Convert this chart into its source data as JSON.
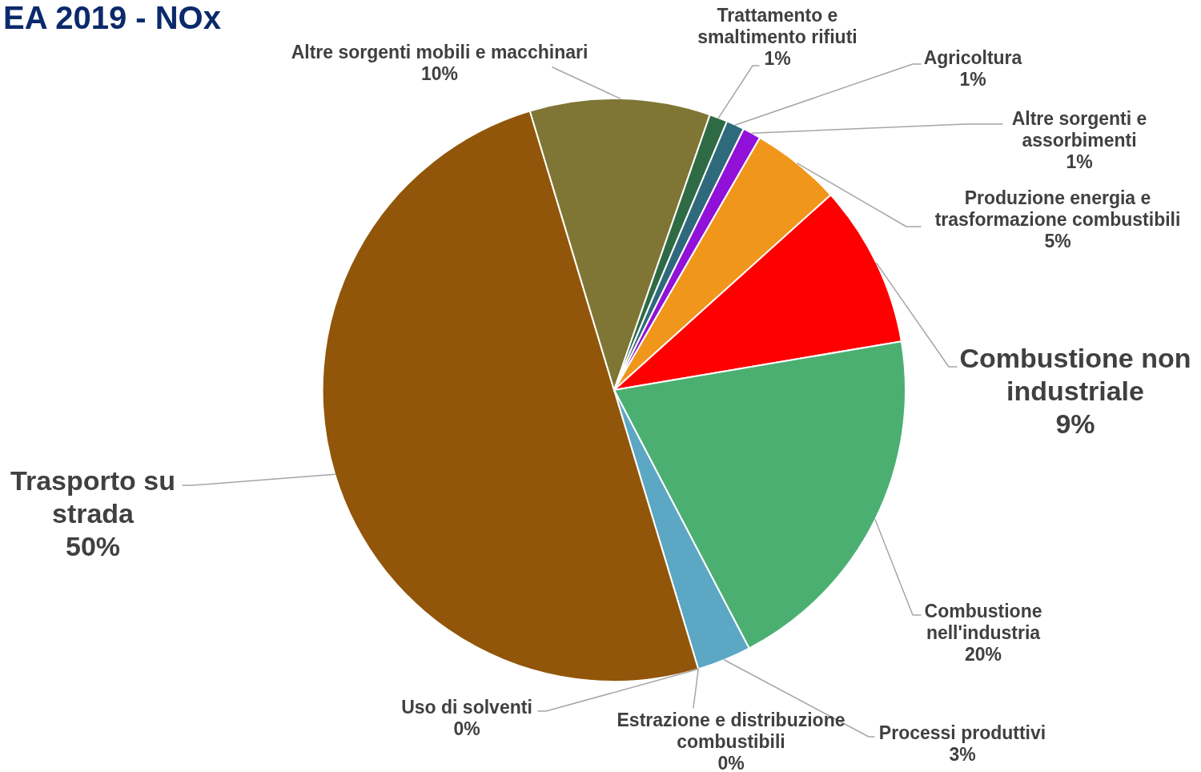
{
  "chart_data": {
    "type": "pie",
    "title": "EA 2019 - NOx",
    "categories": [
      "Produzione energia e trasformazione combustibili",
      "Combustione non industriale",
      "Combustione nell'industria",
      "Processi produttivi",
      "Estrazione e distribuzione combustibili",
      "Uso di solventi",
      "Trasporto su strada",
      "Altre sorgenti mobili e macchinari",
      "Trattamento e smaltimento rifiuti",
      "Agricoltura",
      "Altre sorgenti e assorbimenti"
    ],
    "values": [
      5,
      9,
      20,
      3,
      0,
      0,
      50,
      10,
      1,
      1,
      1
    ],
    "colors": [
      "#f0961a",
      "#ff0000",
      "#4caf72",
      "#5ba7c4",
      "#ed7d31",
      "#e8643a",
      "#915609",
      "#7f7635",
      "#2e6b45",
      "#2e6a7c",
      "#9111d8"
    ],
    "value_labels": [
      "5%",
      "9%",
      "20%",
      "3%",
      "0%",
      "0%",
      "50%",
      "10%",
      "1%",
      "1%",
      "1%"
    ]
  }
}
